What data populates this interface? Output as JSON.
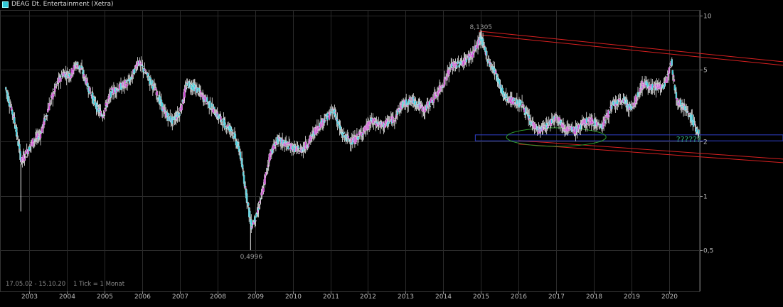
{
  "chart_data": {
    "type": "candlestick",
    "title": "DEAG Dt. Entertainment (Xetra)",
    "period_label": "17.05.02 - 15.10.20",
    "tick_label": "1 Tick = 1 Monat",
    "y_scale": "log",
    "ylim": [
      0.42,
      11
    ],
    "y_ticks": [
      {
        "value": 10,
        "label": "10"
      },
      {
        "value": 5,
        "label": "5"
      },
      {
        "value": 2,
        "label": "2"
      },
      {
        "value": 1,
        "label": "1"
      },
      {
        "value": 0.5,
        "label": "0,5"
      }
    ],
    "x_ticks": [
      "2003",
      "2004",
      "2005",
      "2006",
      "2007",
      "2008",
      "2009",
      "2010",
      "2011",
      "2012",
      "2013",
      "2014",
      "2015",
      "2016",
      "2017",
      "2018",
      "2019",
      "2020"
    ],
    "x_start_year": 2002.37,
    "x_end_year": 2020.79,
    "annotations": [
      {
        "label": "8,1305",
        "year": 2015.0,
        "value": 8.13
      },
      {
        "label": "0,4996",
        "year": 2008.9,
        "value": 0.4996
      },
      {
        "label": "??????",
        "year": 2020.6,
        "value": 2.1
      }
    ],
    "colors": {
      "up": "#d040d8",
      "down": "#32d0e0",
      "channel": "#d82020",
      "support_box": "#3040c8",
      "ellipse": "#30a030",
      "question": "#30a878",
      "grid": "#2a2a2a"
    },
    "anchors": [
      [
        2002.37,
        4.0
      ],
      [
        2002.6,
        2.7
      ],
      [
        2002.8,
        1.55
      ],
      [
        2003.1,
        2.0
      ],
      [
        2003.3,
        2.2
      ],
      [
        2003.5,
        3.0
      ],
      [
        2003.7,
        4.0
      ],
      [
        2003.9,
        4.8
      ],
      [
        2004.1,
        4.7
      ],
      [
        2004.25,
        5.4
      ],
      [
        2004.4,
        5.0
      ],
      [
        2004.6,
        3.9
      ],
      [
        2004.8,
        3.1
      ],
      [
        2004.95,
        2.8
      ],
      [
        2005.2,
        3.8
      ],
      [
        2005.5,
        4.1
      ],
      [
        2005.7,
        4.4
      ],
      [
        2005.9,
        5.6
      ],
      [
        2006.1,
        4.8
      ],
      [
        2006.35,
        3.9
      ],
      [
        2006.6,
        2.9
      ],
      [
        2006.8,
        2.6
      ],
      [
        2007.0,
        2.9
      ],
      [
        2007.2,
        4.2
      ],
      [
        2007.4,
        4.0
      ],
      [
        2007.6,
        3.6
      ],
      [
        2007.8,
        3.2
      ],
      [
        2008.0,
        2.8
      ],
      [
        2008.2,
        2.5
      ],
      [
        2008.4,
        2.3
      ],
      [
        2008.6,
        1.75
      ],
      [
        2008.75,
        1.1
      ],
      [
        2008.9,
        0.68
      ],
      [
        2009.05,
        0.78
      ],
      [
        2009.2,
        1.05
      ],
      [
        2009.4,
        1.7
      ],
      [
        2009.6,
        2.05
      ],
      [
        2009.9,
        1.9
      ],
      [
        2010.2,
        1.78
      ],
      [
        2010.4,
        1.95
      ],
      [
        2010.6,
        2.3
      ],
      [
        2010.8,
        2.6
      ],
      [
        2011.1,
        3.0
      ],
      [
        2011.3,
        2.2
      ],
      [
        2011.6,
        2.0
      ],
      [
        2011.9,
        2.3
      ],
      [
        2012.1,
        2.6
      ],
      [
        2012.4,
        2.45
      ],
      [
        2012.7,
        2.7
      ],
      [
        2012.9,
        3.2
      ],
      [
        2013.2,
        3.4
      ],
      [
        2013.5,
        3.0
      ],
      [
        2013.8,
        3.6
      ],
      [
        2014.0,
        4.2
      ],
      [
        2014.2,
        5.2
      ],
      [
        2014.5,
        5.5
      ],
      [
        2014.8,
        6.2
      ],
      [
        2015.0,
        7.6
      ],
      [
        2015.2,
        5.6
      ],
      [
        2015.4,
        4.8
      ],
      [
        2015.6,
        3.6
      ],
      [
        2015.8,
        3.4
      ],
      [
        2016.1,
        3.2
      ],
      [
        2016.3,
        2.6
      ],
      [
        2016.55,
        2.3
      ],
      [
        2016.8,
        2.5
      ],
      [
        2017.0,
        2.8
      ],
      [
        2017.2,
        2.4
      ],
      [
        2017.5,
        2.3
      ],
      [
        2017.8,
        2.6
      ],
      [
        2018.0,
        2.6
      ],
      [
        2018.2,
        2.4
      ],
      [
        2018.5,
        3.2
      ],
      [
        2018.8,
        3.4
      ],
      [
        2019.0,
        3.0
      ],
      [
        2019.3,
        4.2
      ],
      [
        2019.6,
        4.0
      ],
      [
        2019.9,
        4.1
      ],
      [
        2020.05,
        5.8
      ],
      [
        2020.2,
        3.4
      ],
      [
        2020.4,
        3.1
      ],
      [
        2020.6,
        2.7
      ],
      [
        2020.79,
        2.2
      ]
    ]
  }
}
